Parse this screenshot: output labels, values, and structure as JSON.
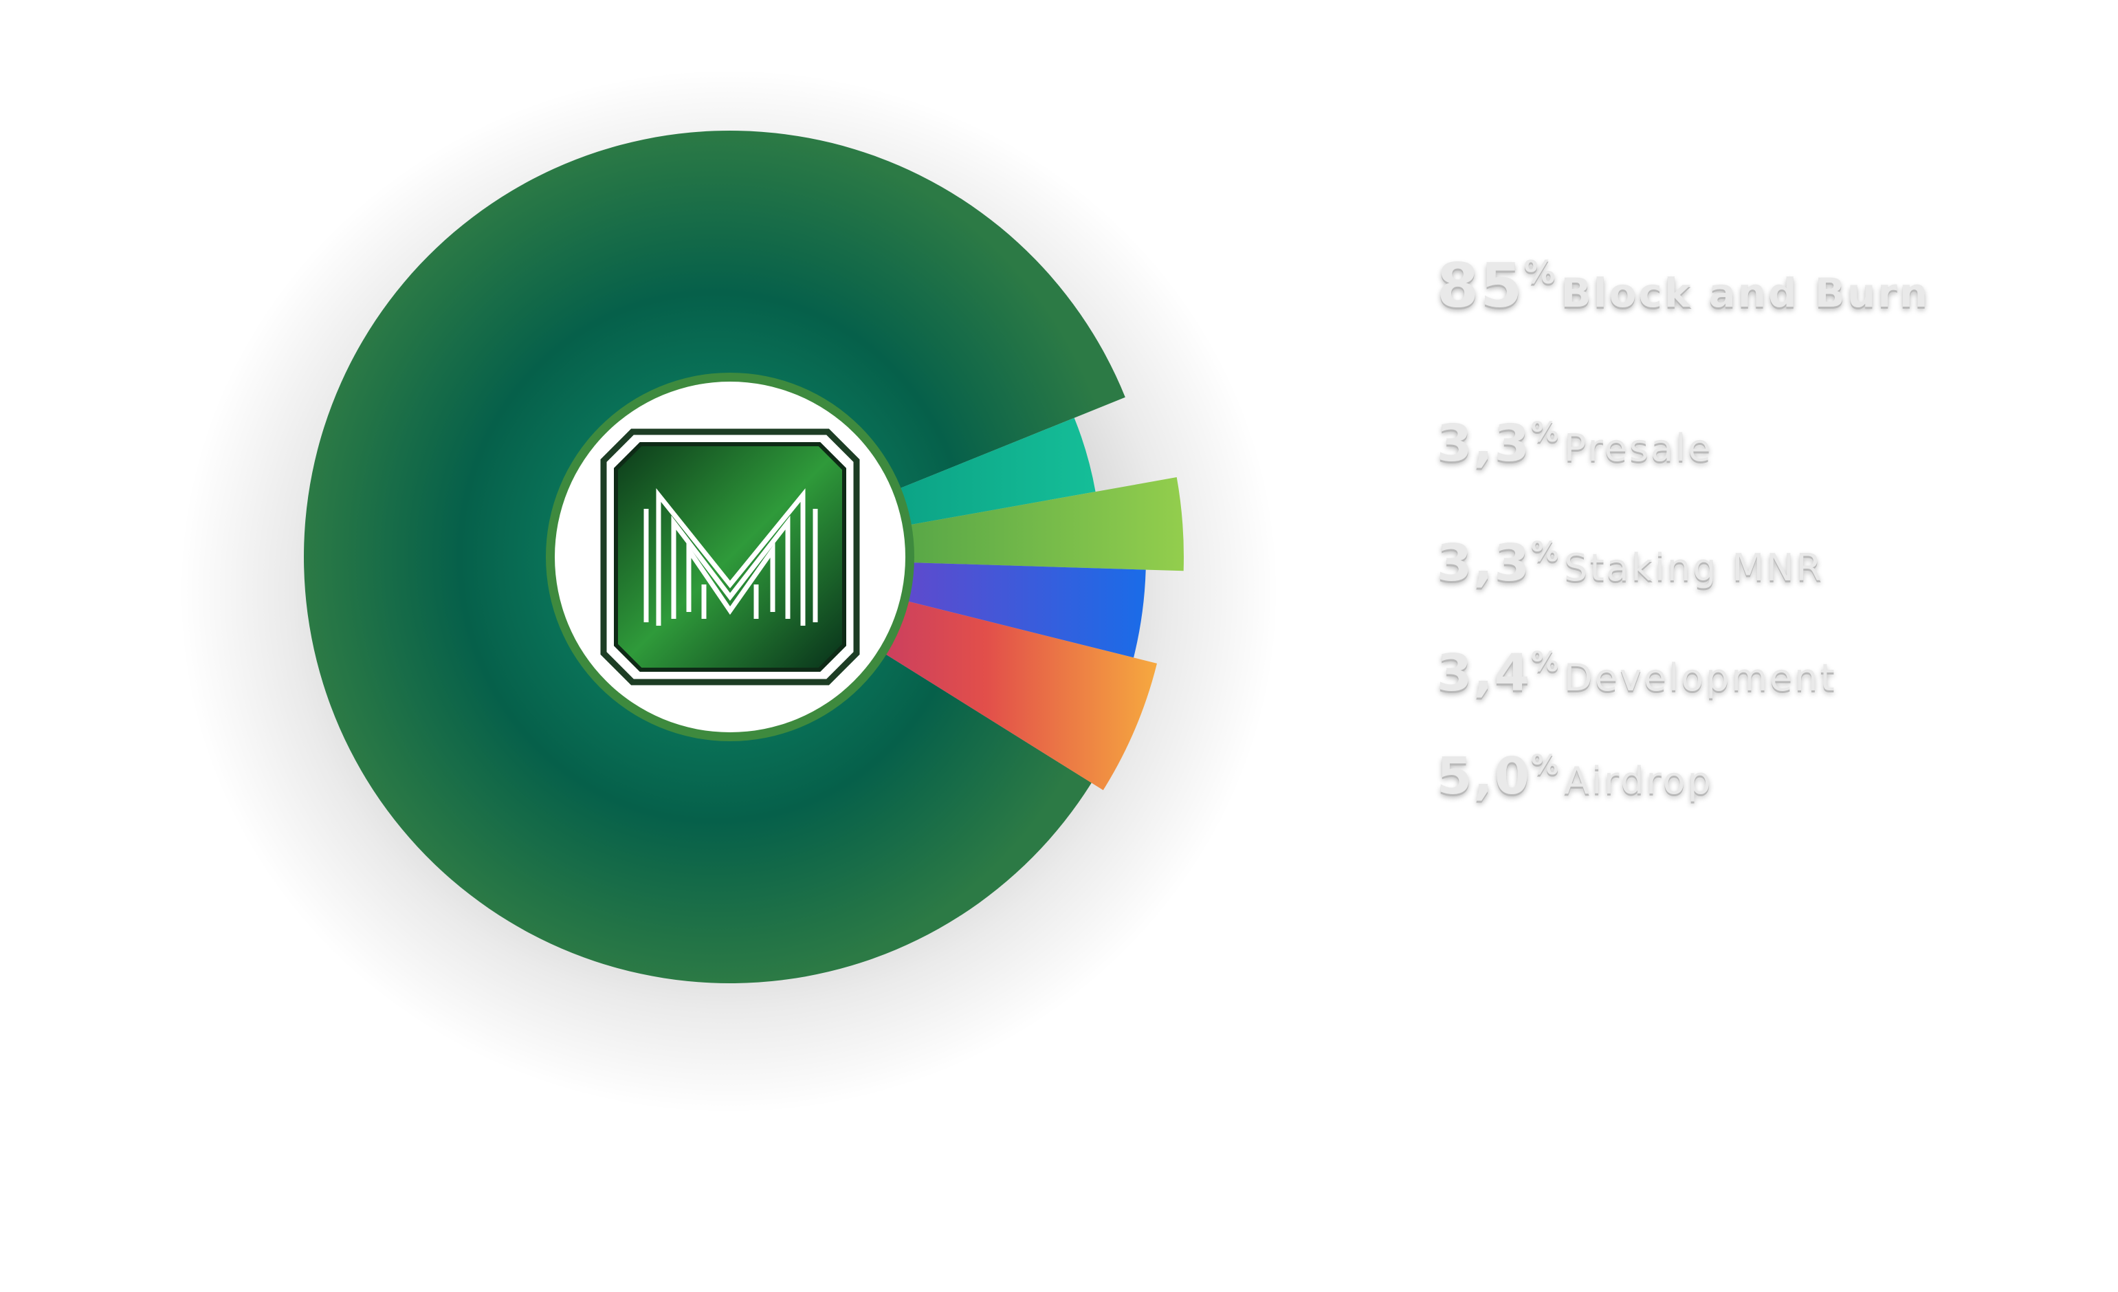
{
  "chart_data": {
    "type": "pie",
    "slices": [
      {
        "label": "Block and Burn",
        "value": 85,
        "pct_text": "85",
        "color": "#0a6b52"
      },
      {
        "label": "Presale",
        "value": 3.3,
        "pct_text": "3,3",
        "color": "#12b592"
      },
      {
        "label": "Staking MNR",
        "value": 3.3,
        "pct_text": "3,3",
        "color": "#8dc84a"
      },
      {
        "label": "Development",
        "value": 3.4,
        "pct_text": "3,4",
        "color": "#2f63e0"
      },
      {
        "label": "Airdrop",
        "value": 5.0,
        "pct_text": "5,0",
        "color": "#f08a3c"
      }
    ],
    "percent_sign": "%",
    "center_logo": "M"
  }
}
